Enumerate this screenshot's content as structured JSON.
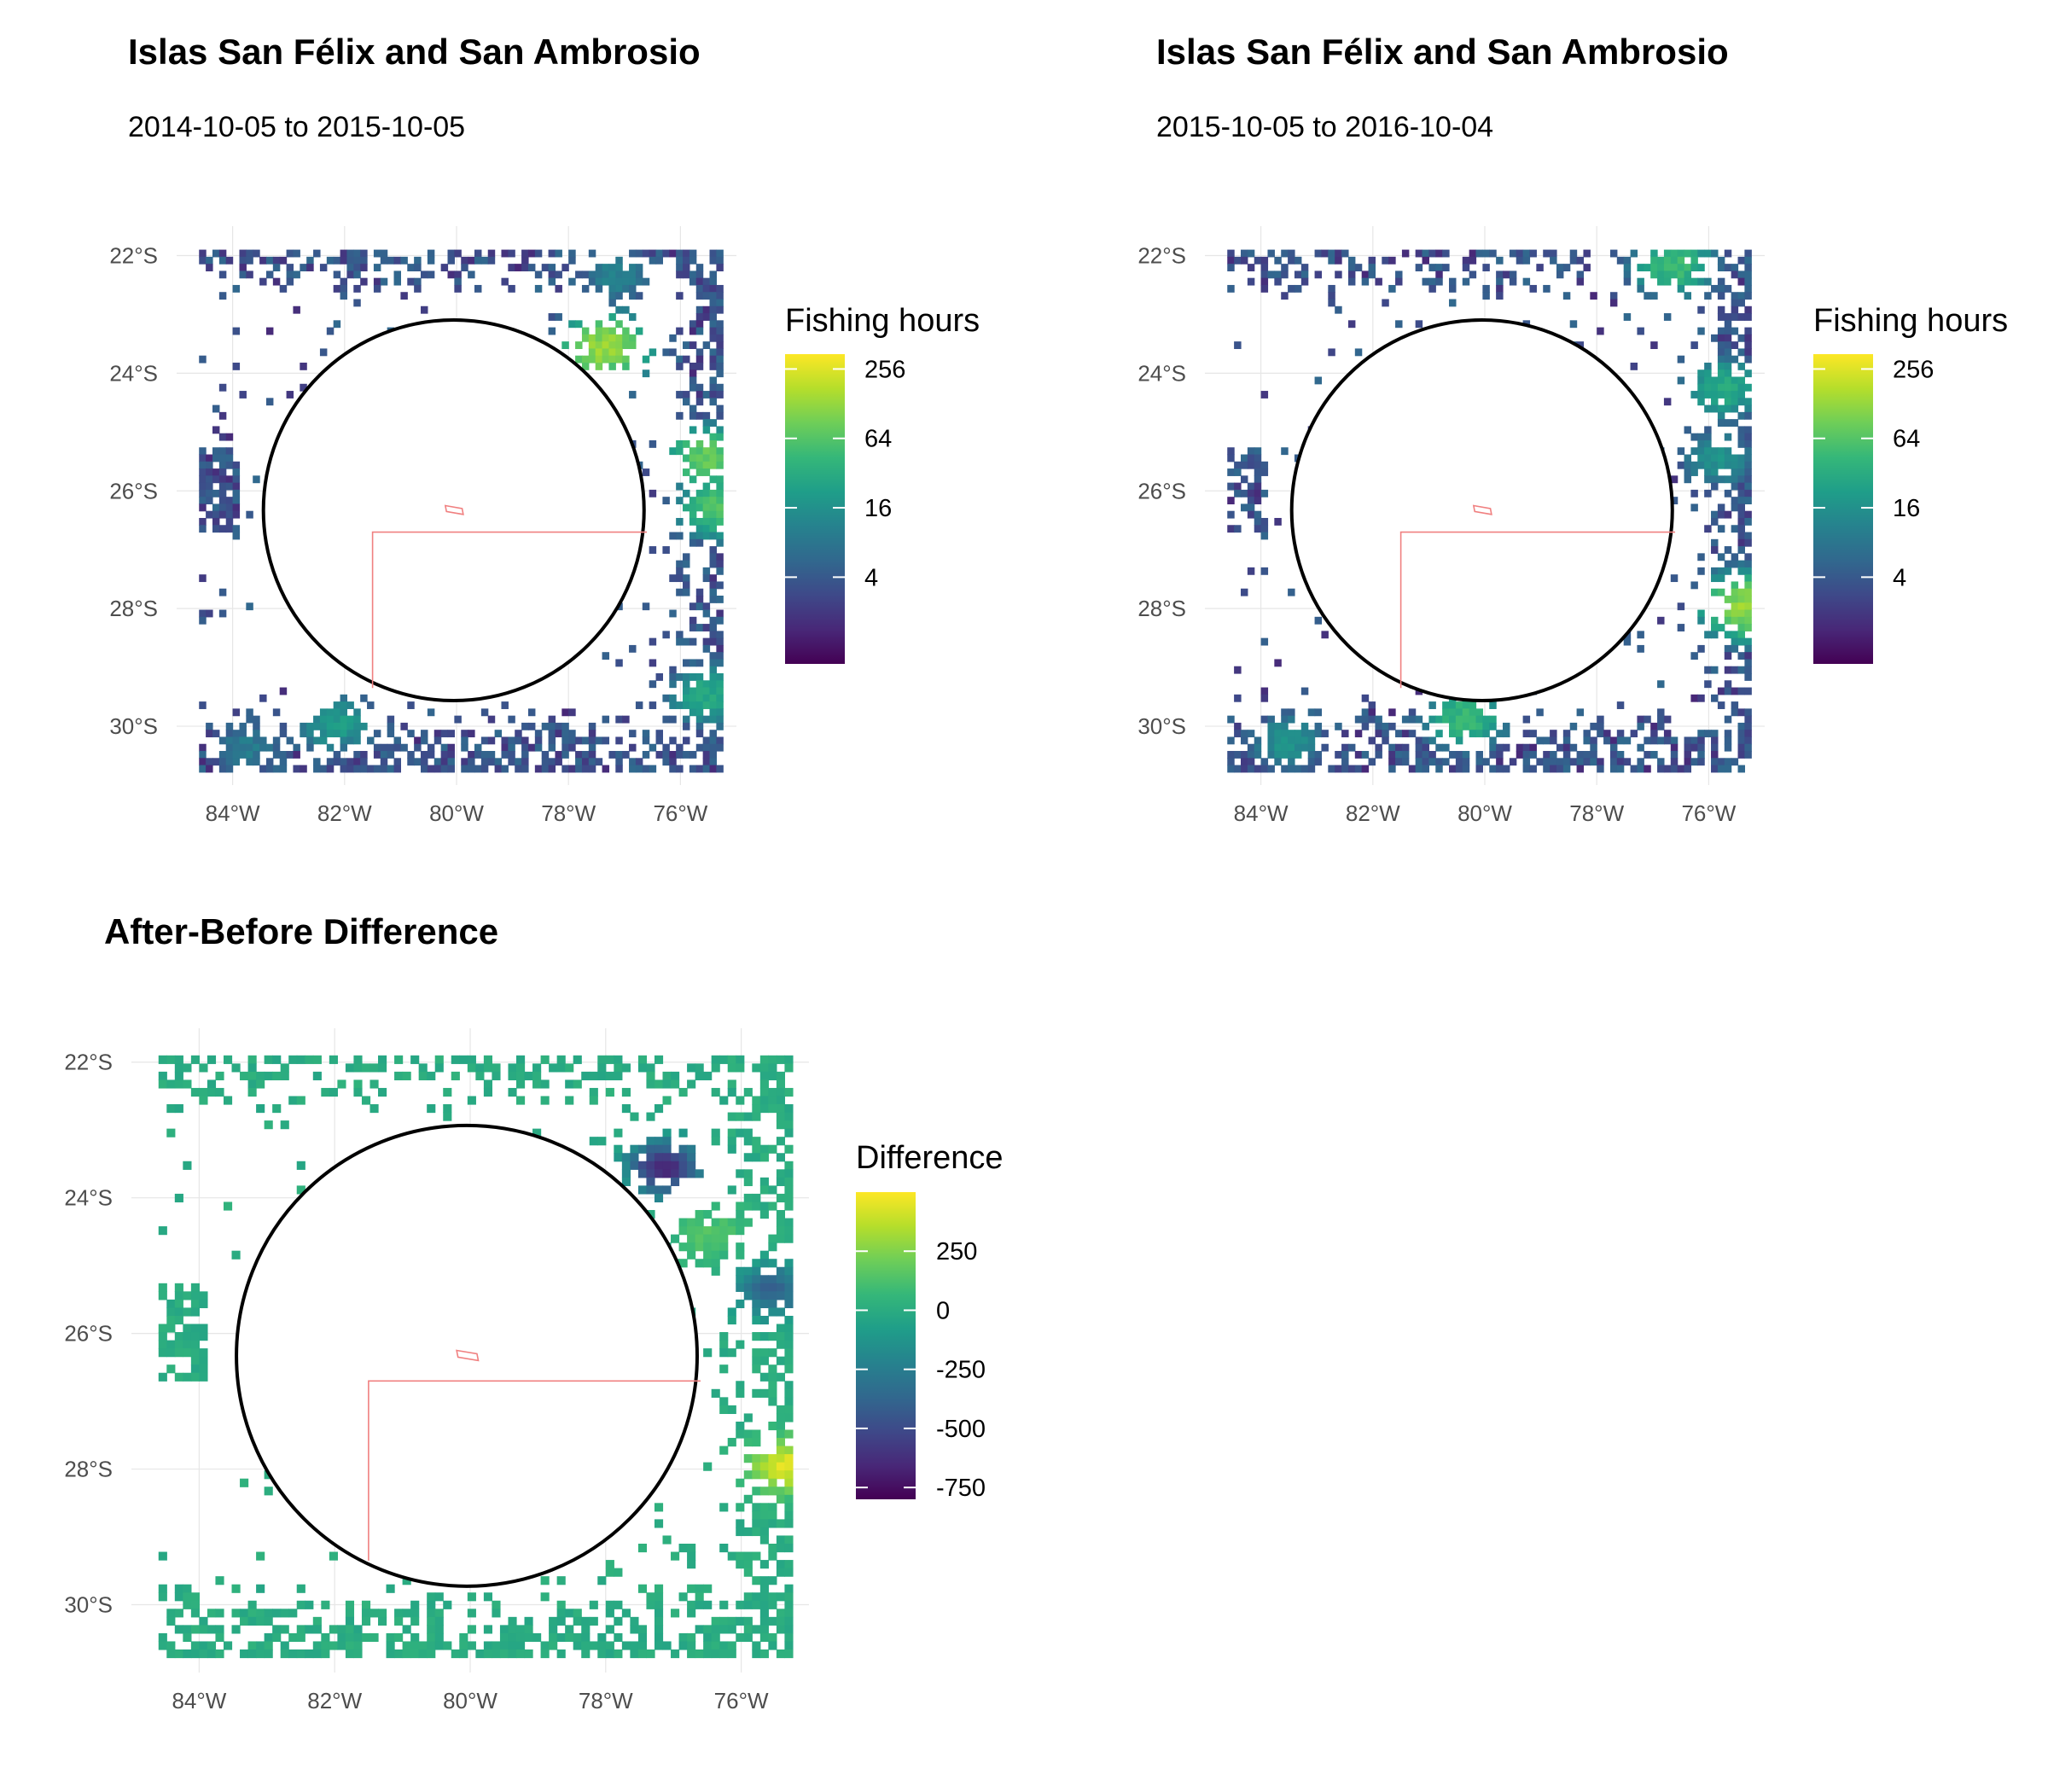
{
  "colors": {
    "viridis": [
      "#440154",
      "#482878",
      "#3e4989",
      "#31688e",
      "#26828e",
      "#1f9e89",
      "#35b779",
      "#6ece58",
      "#b5de2b",
      "#fde725"
    ],
    "circle": "#000000",
    "boundary": "#f08080"
  },
  "chart_data": [
    {
      "type": "heatmap",
      "title": "Islas San Félix and San Ambrosio",
      "subtitle": "2014-10-05 to 2015-10-05",
      "xlabel": "",
      "ylabel": "",
      "x_ticks": [
        "84°W",
        "82°W",
        "80°W",
        "78°W",
        "76°W"
      ],
      "y_ticks": [
        "22°S",
        "24°S",
        "26°S",
        "28°S",
        "30°S"
      ],
      "xlim": [
        -85.0,
        -75.0
      ],
      "ylim": [
        -31.0,
        -21.5
      ],
      "grid": true,
      "legend": {
        "title": "Fishing hours",
        "position": "right",
        "scale": "log",
        "ticks": [
          "256",
          "64",
          "16",
          "4"
        ]
      },
      "circle": {
        "center_lon": -80.05,
        "center_lat": -26.33,
        "radius_deg": 3.4
      },
      "hotspots": [
        {
          "lon": -77.4,
          "lat": -23.5,
          "value": 300
        },
        {
          "lon": -75.6,
          "lat": -25.4,
          "value": 180
        },
        {
          "lon": -75.4,
          "lat": -26.2,
          "value": 120
        },
        {
          "lon": -75.6,
          "lat": -29.4,
          "value": 60
        },
        {
          "lon": -77.2,
          "lat": -22.3,
          "value": 20
        },
        {
          "lon": -82.2,
          "lat": -29.9,
          "value": 40
        },
        {
          "lon": -83.8,
          "lat": -30.3,
          "value": 16
        }
      ]
    },
    {
      "type": "heatmap",
      "title": "Islas San Félix and San Ambrosio",
      "subtitle": "2015-10-05 to 2016-10-04",
      "xlabel": "",
      "ylabel": "",
      "x_ticks": [
        "84°W",
        "82°W",
        "80°W",
        "78°W",
        "76°W"
      ],
      "y_ticks": [
        "22°S",
        "24°S",
        "26°S",
        "28°S",
        "30°S"
      ],
      "xlim": [
        -85.0,
        -75.0
      ],
      "ylim": [
        -31.0,
        -21.5
      ],
      "grid": true,
      "legend": {
        "title": "Fishing hours",
        "position": "right",
        "scale": "log",
        "ticks": [
          "256",
          "64",
          "16",
          "4"
        ]
      },
      "circle": {
        "center_lon": -80.05,
        "center_lat": -26.33,
        "radius_deg": 3.4
      },
      "hotspots": [
        {
          "lon": -76.7,
          "lat": -22.1,
          "value": 100
        },
        {
          "lon": -75.8,
          "lat": -24.2,
          "value": 60
        },
        {
          "lon": -75.4,
          "lat": -27.9,
          "value": 280
        },
        {
          "lon": -75.9,
          "lat": -25.4,
          "value": 30
        },
        {
          "lon": -80.4,
          "lat": -29.8,
          "value": 90
        },
        {
          "lon": -83.6,
          "lat": -30.2,
          "value": 30
        }
      ]
    },
    {
      "type": "heatmap",
      "title": "After-Before Difference",
      "xlabel": "",
      "ylabel": "",
      "x_ticks": [
        "84°W",
        "82°W",
        "80°W",
        "78°W",
        "76°W"
      ],
      "y_ticks": [
        "22°S",
        "24°S",
        "26°S",
        "28°S",
        "30°S"
      ],
      "xlim": [
        -85.0,
        -75.0
      ],
      "ylim": [
        -31.0,
        -21.5
      ],
      "grid": true,
      "legend": {
        "title": "Difference",
        "position": "right",
        "scale": "linear",
        "ticks": [
          "250",
          "0",
          "-250",
          "-500",
          "-750"
        ]
      },
      "circle": {
        "center_lon": -80.05,
        "center_lat": -26.33,
        "radius_deg": 3.4
      },
      "hotspots": [
        {
          "lon": -77.2,
          "lat": -23.5,
          "value": -650
        },
        {
          "lon": -75.6,
          "lat": -25.3,
          "value": -400
        },
        {
          "lon": -75.4,
          "lat": -27.9,
          "value": 450
        },
        {
          "lon": -76.5,
          "lat": -24.5,
          "value": 150
        }
      ]
    }
  ]
}
